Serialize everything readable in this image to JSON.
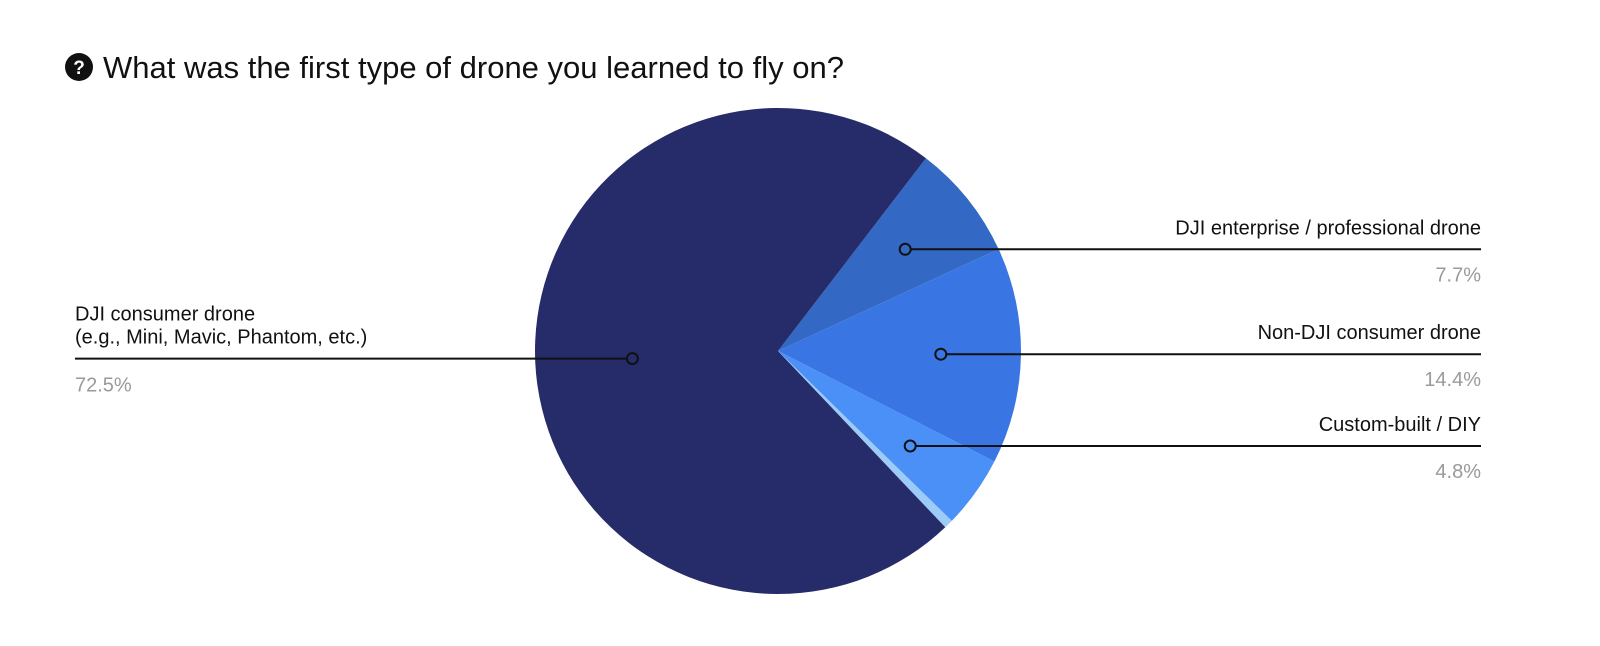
{
  "question": {
    "icon": "question-circle-icon",
    "text": "What was the first type of drone you learned to fly on?"
  },
  "chart_data": {
    "type": "pie",
    "title": "What was the first type of drone you learned to fly on?",
    "slices": [
      {
        "label": [
          "DJI enterprise / professional drone"
        ],
        "value": 7.7,
        "display": "7.7%",
        "color": "#3368c4",
        "side": "right"
      },
      {
        "label": [
          "Non-DJI consumer drone"
        ],
        "value": 14.4,
        "display": "14.4%",
        "color": "#3976e3",
        "side": "right"
      },
      {
        "label": [
          "Custom-built / DIY"
        ],
        "value": 4.8,
        "display": "4.8%",
        "color": "#4a90f7",
        "side": "right"
      },
      {
        "label": [],
        "value": 0.6,
        "display": "",
        "color": "#9dcbf7",
        "side": "none"
      },
      {
        "label": [
          "DJI consumer drone",
          "(e.g., Mini, Mavic, Phantom, etc.)"
        ],
        "value": 72.5,
        "display": "72.5%",
        "color": "#262b6a",
        "side": "left"
      }
    ]
  }
}
